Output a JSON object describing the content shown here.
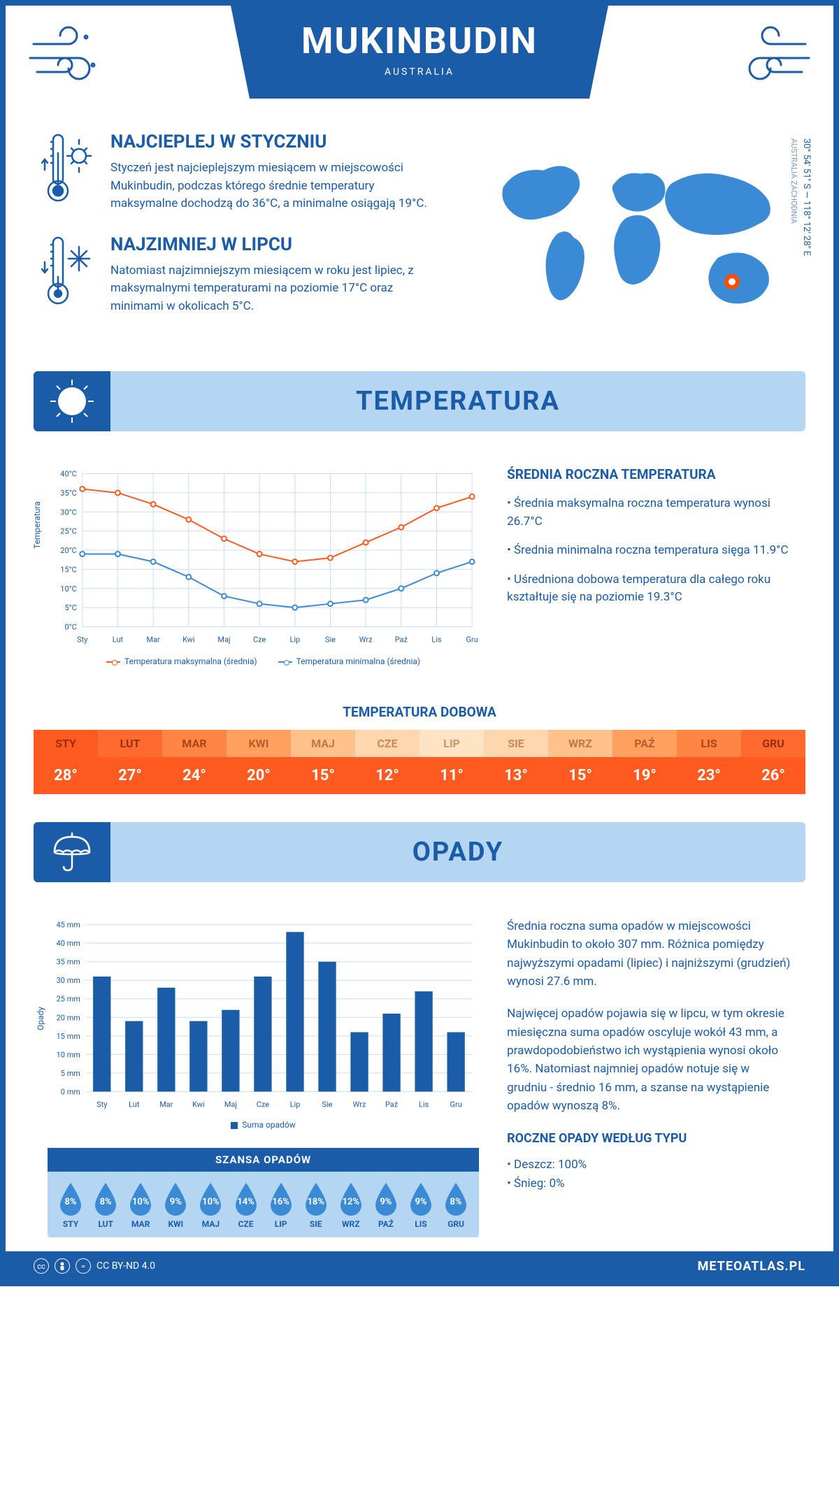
{
  "header": {
    "city": "MUKINBUDIN",
    "country": "AUSTRALIA"
  },
  "coords": {
    "line": "30° 54' 51'' S — 118° 12' 28'' E",
    "region": "AUSTRALIA ZACHODNIA"
  },
  "map_marker": {
    "left_pct": 78,
    "top_pct": 72
  },
  "hot": {
    "title": "NAJCIEPLEJ W STYCZNIU",
    "text": "Styczeń jest najcieplejszym miesiącem w miejscowości Mukinbudin, podczas którego średnie temperatury maksymalne dochodzą do 36°C, a minimalne osiągają 19°C."
  },
  "cold": {
    "title": "NAJZIMNIEJ W LIPCU",
    "text": "Natomiast najzimniejszym miesiącem w roku jest lipiec, z maksymalnymi temperaturami na poziomie 17°C oraz minimami w okolicach 5°C."
  },
  "section_temp_title": "TEMPERATURA",
  "section_prec_title": "OPADY",
  "months": [
    "Sty",
    "Lut",
    "Mar",
    "Kwi",
    "Maj",
    "Cze",
    "Lip",
    "Sie",
    "Wrz",
    "Paź",
    "Lis",
    "Gru"
  ],
  "months_upper": [
    "STY",
    "LUT",
    "MAR",
    "KWI",
    "MAJ",
    "CZE",
    "LIP",
    "SIE",
    "WRZ",
    "PAŹ",
    "LIS",
    "GRU"
  ],
  "temp_chart": {
    "ylabel": "Temperatura",
    "ylim": [
      0,
      40
    ],
    "ytick_step": 5,
    "y_suffix": "°C",
    "grid_color": "#c9dff0",
    "series_max": {
      "values": [
        36,
        35,
        32,
        28,
        23,
        19,
        17,
        18,
        22,
        26,
        31,
        34
      ],
      "color": "#ff5a1f",
      "label": "Temperatura maksymalna (średnia)"
    },
    "series_min": {
      "values": [
        19,
        19,
        17,
        13,
        8,
        6,
        5,
        6,
        7,
        10,
        14,
        17
      ],
      "color": "#3a8ad6",
      "label": "Temperatura minimalna (średnia)"
    }
  },
  "temp_info": {
    "title": "ŚREDNIA ROCZNA TEMPERATURA",
    "b1": "• Średnia maksymalna roczna temperatura wynosi 26.7°C",
    "b2": "• Średnia minimalna roczna temperatura sięga 11.9°C",
    "b3": "• Uśredniona dobowa temperatura dla całego roku kształtuje się na poziomie 19.3°C"
  },
  "daily_title": "TEMPERATURA DOBOWA",
  "daily": {
    "values": [
      "28°",
      "27°",
      "24°",
      "20°",
      "15°",
      "12°",
      "11°",
      "13°",
      "15°",
      "19°",
      "23°",
      "26°"
    ],
    "header_colors": [
      "#ff5a1f",
      "#ff6b2e",
      "#ff8545",
      "#ffa05e",
      "#ffc28c",
      "#ffd7ae",
      "#ffe3c5",
      "#ffd7ae",
      "#ffc28c",
      "#ffa05e",
      "#ff8545",
      "#ff6b2e"
    ],
    "header_text_colors": [
      "#9a2e00",
      "#9a2e00",
      "#a84513",
      "#b55f2a",
      "#c47a44",
      "#c98a58",
      "#cc9568",
      "#c98a58",
      "#c47a44",
      "#b55f2a",
      "#a84513",
      "#9a2e00"
    ],
    "value_bg": "#ff5a1f"
  },
  "prec_chart": {
    "ylabel": "Opady",
    "ylim": [
      0,
      45
    ],
    "ytick_step": 5,
    "y_suffix": " mm",
    "bar_color": "#1a5ca8",
    "values": [
      31,
      19,
      28,
      19,
      22,
      31,
      43,
      35,
      16,
      21,
      27,
      16
    ],
    "legend": "Suma opadów"
  },
  "chance": {
    "title": "SZANSA OPADÓW",
    "values": [
      "8%",
      "8%",
      "10%",
      "9%",
      "10%",
      "14%",
      "16%",
      "18%",
      "12%",
      "9%",
      "9%",
      "8%"
    ],
    "drop_color": "#3a8ad6"
  },
  "prec_info": {
    "p1": "Średnia roczna suma opadów w miejscowości Mukinbudin to około 307 mm. Różnica pomiędzy najwyższymi opadami (lipiec) i najniższymi (grudzień) wynosi 27.6 mm.",
    "p2": "Najwięcej opadów pojawia się w lipcu, w tym okresie miesięczna suma opadów oscyluje wokół 43 mm, a prawdopodobieństwo ich wystąpienia wynosi około 16%. Natomiast najmniej opadów notuje się w grudniu - średnio 16 mm, a szanse na wystąpienie opadów wynoszą 8%.",
    "type_title": "ROCZNE OPADY WEDŁUG TYPU",
    "rain": "• Deszcz: 100%",
    "snow": "• Śnieg: 0%"
  },
  "footer": {
    "license": "CC BY-ND 4.0",
    "brand": "METEOATLAS.PL"
  }
}
